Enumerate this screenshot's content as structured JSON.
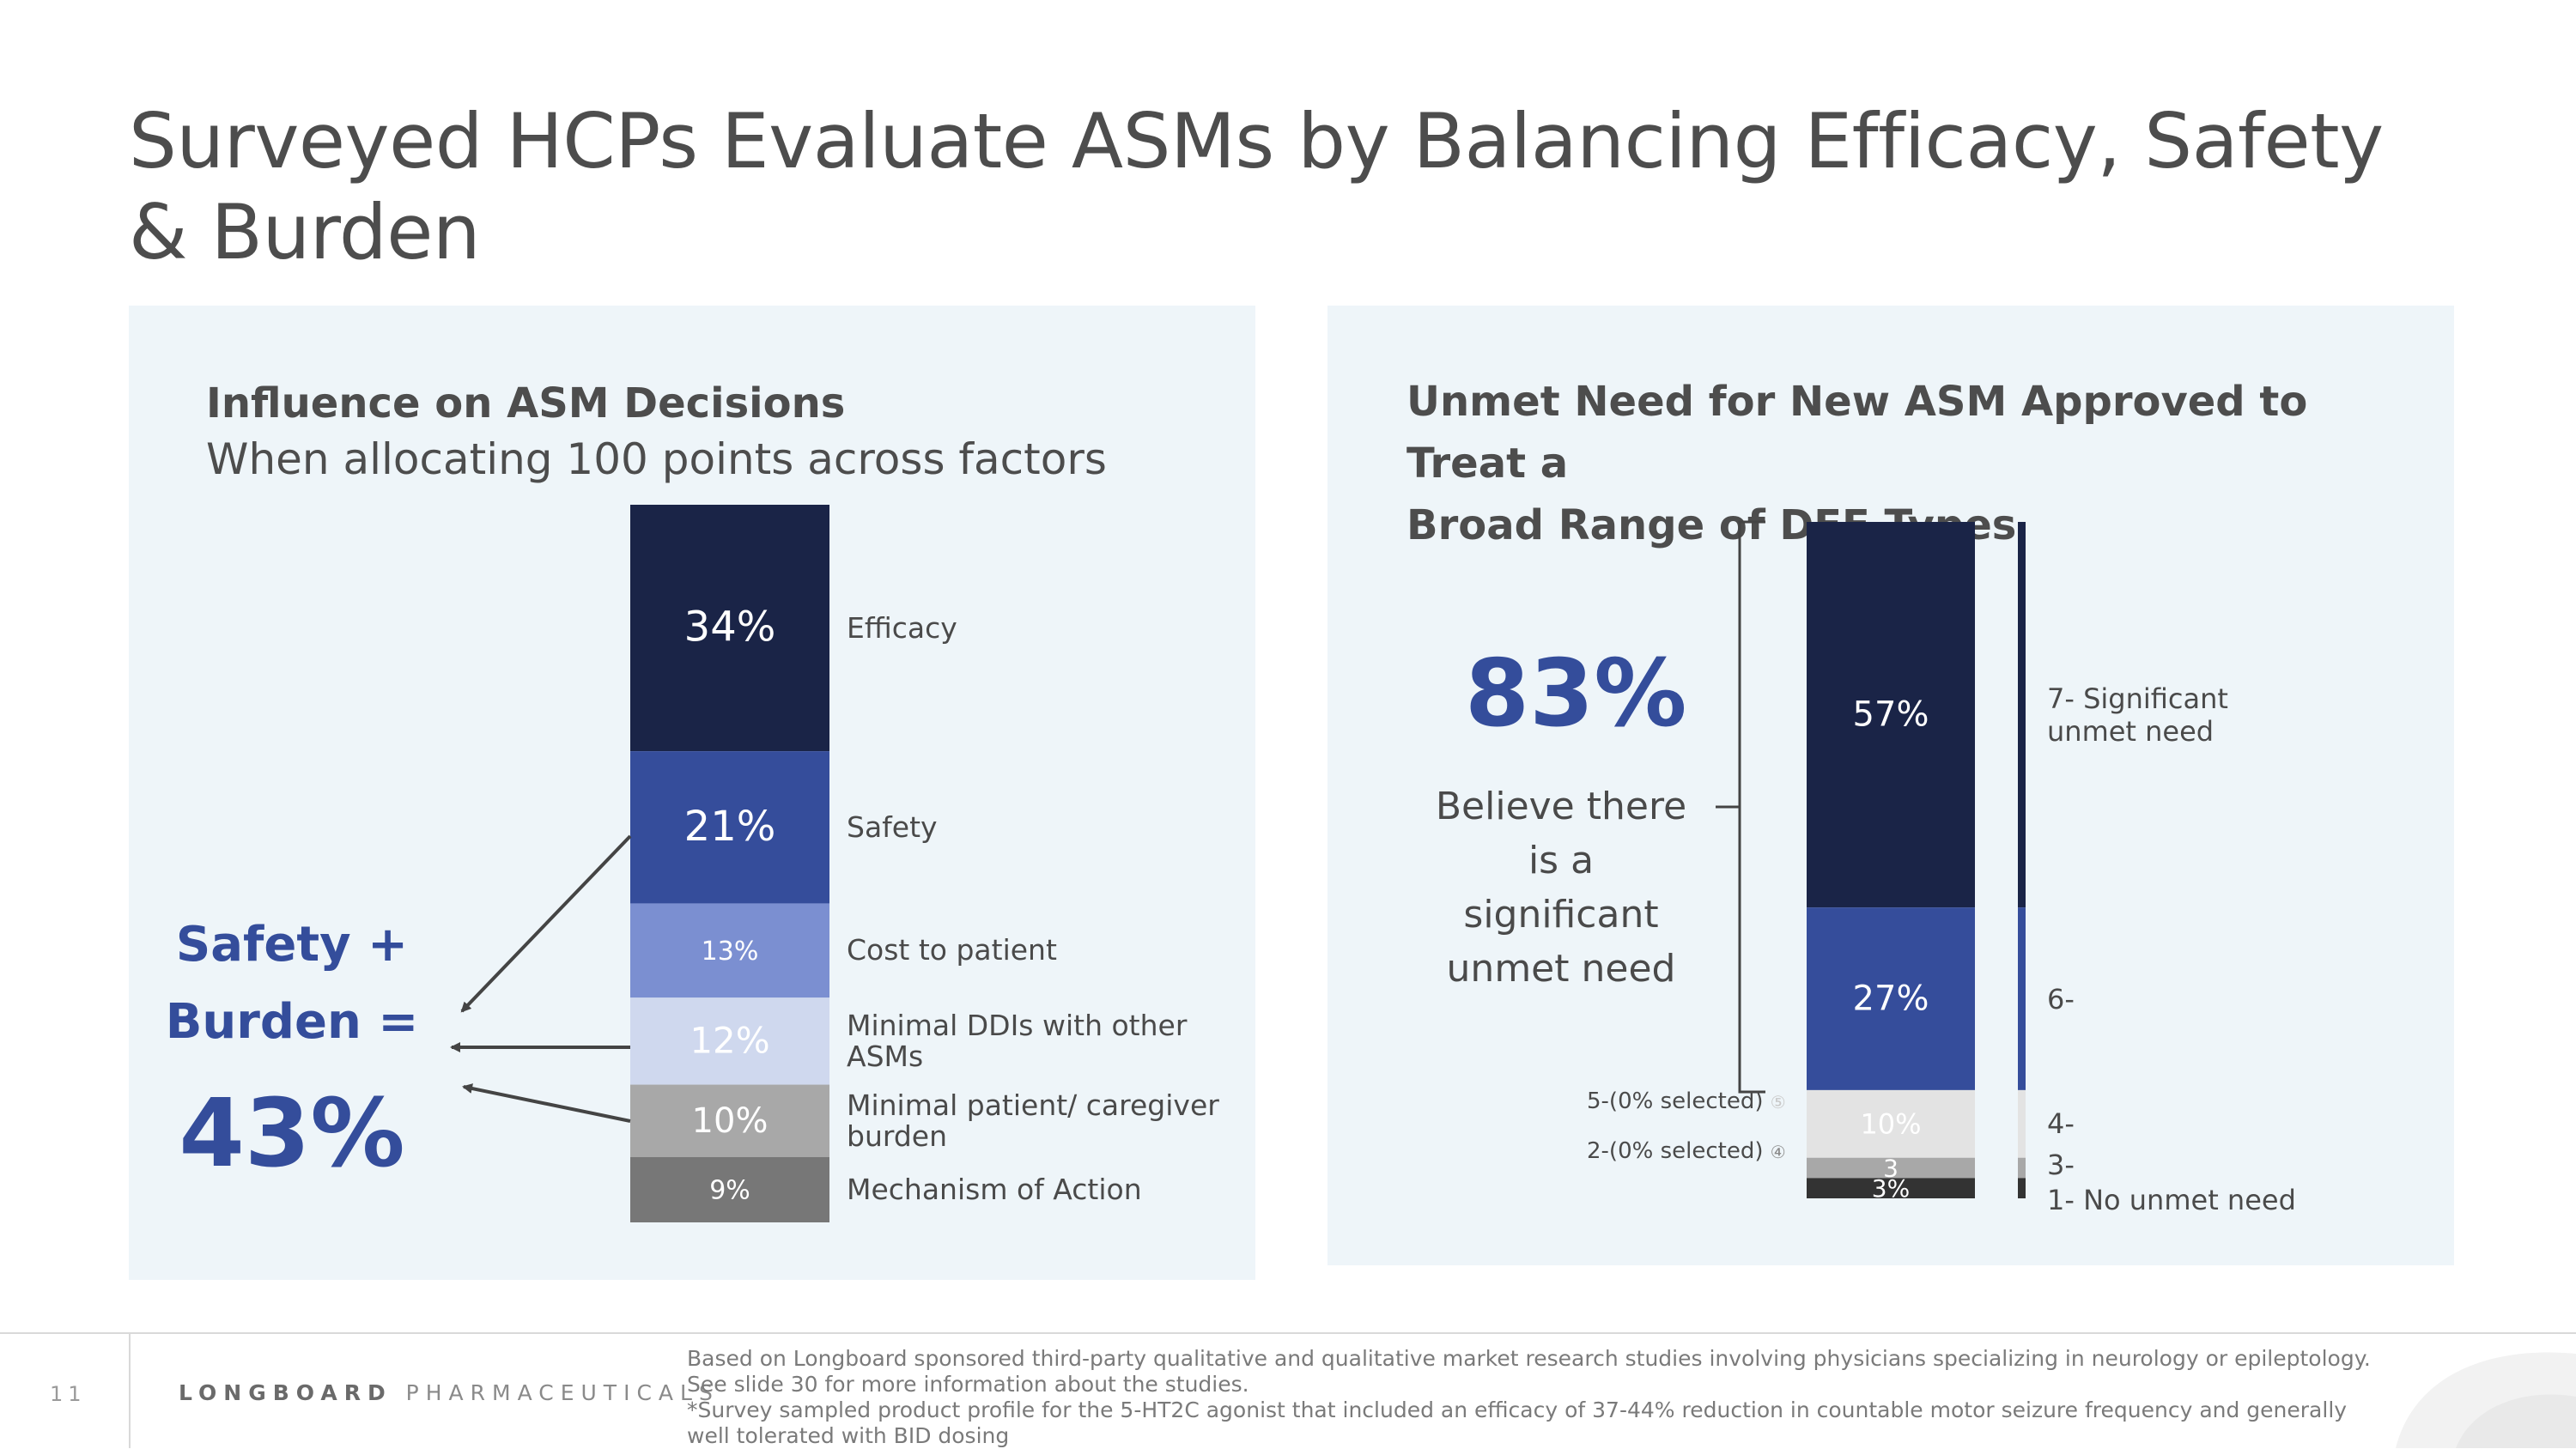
{
  "title": "Surveyed HCPs Evaluate ASMs by Balancing Efficacy, Safety & Burden",
  "left_panel": {
    "heading": "Influence on ASM Decisions",
    "subheading": "When allocating 100 points across factors",
    "callout_line1": "Safety +",
    "callout_line2": "Burden =",
    "callout_value": "43%"
  },
  "right_panel": {
    "heading_line1": "Unmet Need for New ASM Approved to Treat a",
    "heading_line2": "Broad Range of DEE Types",
    "big_value": "83%",
    "believe_text": "Believe there is a significant unmet need",
    "sel5": "5-(0% selected)",
    "sel2": "2-(0% selected)",
    "sel_marker5": "⑤",
    "sel_marker2": "④"
  },
  "chart_data": [
    {
      "type": "bar",
      "stacked": true,
      "title": "Influence on ASM Decisions",
      "subtitle": "When allocating 100 points across factors",
      "categories": [
        "Efficacy",
        "Safety",
        "Cost to patient",
        "Minimal DDIs with other ASMs",
        "Minimal patient/ caregiver burden",
        "Mechanism of Action"
      ],
      "values": [
        34,
        21,
        13,
        12,
        10,
        9
      ],
      "labels": [
        "34%",
        "21%",
        "13%",
        "12%",
        "10%",
        "9%"
      ],
      "colors": [
        "#1a2447",
        "#354d9b",
        "#7b8fd1",
        "#cfd8ee",
        "#a8a8a8",
        "#777777"
      ],
      "label_colors": [
        "#ffffff",
        "#ffffff",
        "#ffffff",
        "#6d6d6d",
        "#ffffff",
        "#ffffff"
      ]
    },
    {
      "type": "bar",
      "stacked": true,
      "title": "Unmet Need for New ASM Approved to Treat a Broad Range of DEE Types",
      "categories": [
        "7- Significant unmet need",
        "6-",
        "4-",
        "3-",
        "1- No unmet need"
      ],
      "values": [
        57,
        27,
        10,
        3,
        3
      ],
      "labels": [
        "57%",
        "27%",
        "10%",
        "3",
        "3%"
      ],
      "colors": [
        "#1a2447",
        "#354d9b",
        "#e3e3e3",
        "#a8a8a8",
        "#333333"
      ],
      "label_colors": [
        "#ffffff",
        "#ffffff",
        "#4a4a4a",
        "#ffffff",
        "#ffffff"
      ]
    }
  ],
  "footer": {
    "page_number": "11",
    "brand_bold": "LONGBOARD",
    "brand_rest": " PHARMACEUTICALS",
    "note1": "Based on Longboard sponsored third-party qualitative and qualitative market research studies involving physicians specializing in neurology or epileptology.",
    "note2": "See slide 30 for more information about the studies.",
    "note3": "*Survey sampled product profile for the 5-HT2C agonist that included an efficacy of 37-44% reduction in countable motor seizure frequency and generally well tolerated with BID dosing"
  }
}
